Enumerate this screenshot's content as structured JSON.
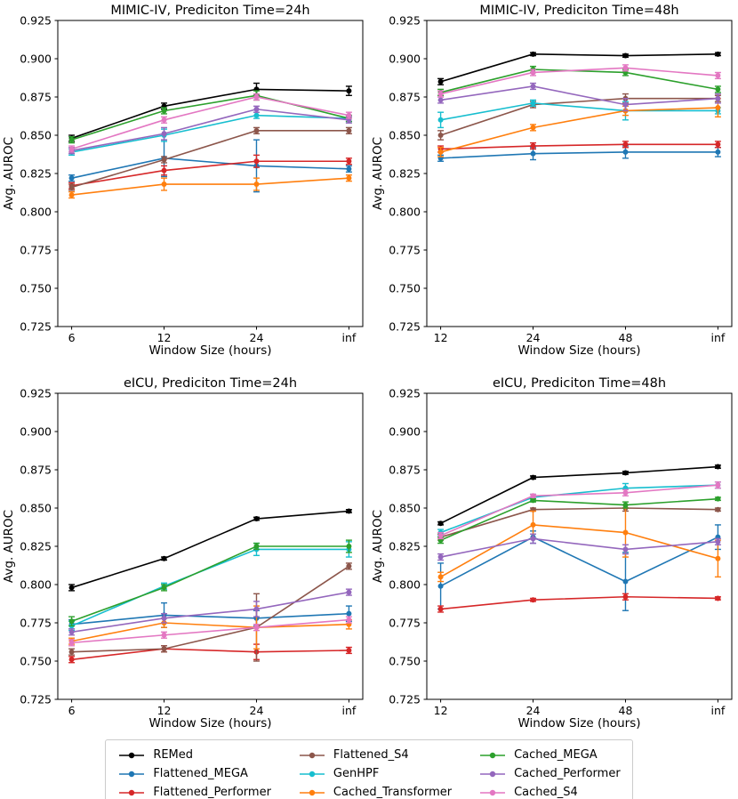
{
  "figure": {
    "background": "#ffffff"
  },
  "legend": {
    "entries": [
      {
        "label": "REMed",
        "color": "#000000"
      },
      {
        "label": "Flattened_MEGA",
        "color": "#1f77b4"
      },
      {
        "label": "Flattened_Performer",
        "color": "#d62728"
      },
      {
        "label": "Flattened_S4",
        "color": "#8c564b"
      },
      {
        "label": "GenHPF",
        "color": "#17becf"
      },
      {
        "label": "Cached_Transformer",
        "color": "#ff7f0e"
      },
      {
        "label": "Cached_MEGA",
        "color": "#2ca02c"
      },
      {
        "label": "Cached_Performer",
        "color": "#9467bd"
      },
      {
        "label": "Cached_S4",
        "color": "#e377c2"
      }
    ]
  },
  "chart_data": [
    {
      "type": "line",
      "title": "MIMIC-IV, Prediciton Time=24h",
      "xlabel": "Window Size (hours)",
      "ylabel": "Avg. AUROC",
      "categories": [
        "6",
        "12",
        "24",
        "inf"
      ],
      "ylim": [
        0.725,
        0.925
      ],
      "yticks": [
        0.725,
        0.75,
        0.775,
        0.8,
        0.825,
        0.85,
        0.875,
        0.9,
        0.925
      ],
      "grid": false,
      "series": [
        {
          "name": "REMed",
          "values": [
            0.848,
            0.869,
            0.88,
            0.879
          ],
          "errors": [
            0.002,
            0.002,
            0.004,
            0.003
          ]
        },
        {
          "name": "Flattened_MEGA",
          "values": [
            0.822,
            0.835,
            0.83,
            0.828
          ],
          "errors": [
            0.002,
            0.012,
            0.017,
            0.002
          ]
        },
        {
          "name": "Flattened_Performer",
          "values": [
            0.817,
            0.827,
            0.833,
            0.833
          ],
          "errors": [
            0.002,
            0.003,
            0.004,
            0.002
          ]
        },
        {
          "name": "Flattened_S4",
          "values": [
            0.816,
            0.834,
            0.853,
            0.853
          ],
          "errors": [
            0.002,
            0.002,
            0.002,
            0.002
          ]
        },
        {
          "name": "GenHPF",
          "values": [
            0.839,
            0.85,
            0.863,
            0.861
          ],
          "errors": [
            0.002,
            0.004,
            0.002,
            0.002
          ]
        },
        {
          "name": "Cached_Transformer",
          "values": [
            0.811,
            0.818,
            0.818,
            0.822
          ],
          "errors": [
            0.002,
            0.004,
            0.004,
            0.002
          ]
        },
        {
          "name": "Cached_MEGA",
          "values": [
            0.847,
            0.866,
            0.876,
            0.861
          ],
          "errors": [
            0.002,
            0.002,
            0.003,
            0.002
          ]
        },
        {
          "name": "Cached_Performer",
          "values": [
            0.84,
            0.851,
            0.867,
            0.86
          ],
          "errors": [
            0.002,
            0.004,
            0.002,
            0.002
          ]
        },
        {
          "name": "Cached_S4",
          "values": [
            0.841,
            0.86,
            0.875,
            0.863
          ],
          "errors": [
            0.002,
            0.002,
            0.002,
            0.002
          ]
        }
      ]
    },
    {
      "type": "line",
      "title": "MIMIC-IV, Prediciton Time=48h",
      "xlabel": "Window Size (hours)",
      "ylabel": "Avg. AUROC",
      "categories": [
        "12",
        "24",
        "48",
        "inf"
      ],
      "ylim": [
        0.725,
        0.925
      ],
      "yticks": [
        0.725,
        0.75,
        0.775,
        0.8,
        0.825,
        0.85,
        0.875,
        0.9,
        0.925
      ],
      "grid": false,
      "series": [
        {
          "name": "REMed",
          "values": [
            0.885,
            0.903,
            0.902,
            0.903
          ],
          "errors": [
            0.002,
            0.001,
            0.001,
            0.001
          ]
        },
        {
          "name": "Flattened_MEGA",
          "values": [
            0.835,
            0.838,
            0.839,
            0.839
          ],
          "errors": [
            0.002,
            0.004,
            0.004,
            0.003
          ]
        },
        {
          "name": "Flattened_Performer",
          "values": [
            0.841,
            0.843,
            0.844,
            0.844
          ],
          "errors": [
            0.002,
            0.002,
            0.002,
            0.002
          ]
        },
        {
          "name": "Flattened_S4",
          "values": [
            0.85,
            0.87,
            0.874,
            0.874
          ],
          "errors": [
            0.003,
            0.002,
            0.003,
            0.002
          ]
        },
        {
          "name": "GenHPF",
          "values": [
            0.86,
            0.871,
            0.866,
            0.866
          ],
          "errors": [
            0.005,
            0.002,
            0.006,
            0.002
          ]
        },
        {
          "name": "Cached_Transformer",
          "values": [
            0.839,
            0.855,
            0.866,
            0.868
          ],
          "errors": [
            0.003,
            0.002,
            0.003,
            0.006
          ]
        },
        {
          "name": "Cached_MEGA",
          "values": [
            0.878,
            0.893,
            0.891,
            0.88
          ],
          "errors": [
            0.002,
            0.002,
            0.002,
            0.002
          ]
        },
        {
          "name": "Cached_Performer",
          "values": [
            0.873,
            0.882,
            0.87,
            0.874
          ],
          "errors": [
            0.002,
            0.002,
            0.004,
            0.003
          ]
        },
        {
          "name": "Cached_S4",
          "values": [
            0.877,
            0.891,
            0.894,
            0.889
          ],
          "errors": [
            0.002,
            0.002,
            0.002,
            0.002
          ]
        }
      ]
    },
    {
      "type": "line",
      "title": "eICU, Prediciton Time=24h",
      "xlabel": "Window Size (hours)",
      "ylabel": "Avg. AUROC",
      "categories": [
        "6",
        "12",
        "24",
        "inf"
      ],
      "ylim": [
        0.725,
        0.925
      ],
      "yticks": [
        0.725,
        0.75,
        0.775,
        0.8,
        0.825,
        0.85,
        0.875,
        0.9,
        0.925
      ],
      "grid": false,
      "series": [
        {
          "name": "REMed",
          "values": [
            0.798,
            0.817,
            0.843,
            0.848
          ],
          "errors": [
            0.002,
            0.001,
            0.001,
            0.001
          ]
        },
        {
          "name": "Flattened_MEGA",
          "values": [
            0.774,
            0.78,
            0.778,
            0.781
          ],
          "errors": [
            0.003,
            0.008,
            0.005,
            0.005
          ]
        },
        {
          "name": "Flattened_Performer",
          "values": [
            0.751,
            0.758,
            0.756,
            0.757
          ],
          "errors": [
            0.002,
            0.002,
            0.005,
            0.002
          ]
        },
        {
          "name": "Flattened_S4",
          "values": [
            0.756,
            0.758,
            0.772,
            0.812
          ],
          "errors": [
            0.002,
            0.002,
            0.022,
            0.002
          ]
        },
        {
          "name": "GenHPF",
          "values": [
            0.773,
            0.799,
            0.823,
            0.823
          ],
          "errors": [
            0.003,
            0.002,
            0.004,
            0.005
          ]
        },
        {
          "name": "Cached_Transformer",
          "values": [
            0.763,
            0.775,
            0.772,
            0.774
          ],
          "errors": [
            0.002,
            0.003,
            0.014,
            0.003
          ]
        },
        {
          "name": "Cached_MEGA",
          "values": [
            0.776,
            0.798,
            0.825,
            0.825
          ],
          "errors": [
            0.003,
            0.002,
            0.002,
            0.004
          ]
        },
        {
          "name": "Cached_Performer",
          "values": [
            0.769,
            0.778,
            0.784,
            0.795
          ],
          "errors": [
            0.002,
            0.003,
            0.005,
            0.002
          ]
        },
        {
          "name": "Cached_S4",
          "values": [
            0.762,
            0.767,
            0.772,
            0.777
          ],
          "errors": [
            0.002,
            0.002,
            0.002,
            0.002
          ]
        }
      ]
    },
    {
      "type": "line",
      "title": "eICU, Prediciton Time=48h",
      "xlabel": "Window Size (hours)",
      "ylabel": "Avg. AUROC",
      "categories": [
        "12",
        "24",
        "48",
        "inf"
      ],
      "ylim": [
        0.725,
        0.925
      ],
      "yticks": [
        0.725,
        0.75,
        0.775,
        0.8,
        0.825,
        0.85,
        0.875,
        0.9,
        0.925
      ],
      "grid": false,
      "series": [
        {
          "name": "REMed",
          "values": [
            0.84,
            0.87,
            0.873,
            0.877
          ],
          "errors": [
            0.001,
            0.001,
            0.001,
            0.001
          ]
        },
        {
          "name": "Flattened_MEGA",
          "values": [
            0.799,
            0.831,
            0.802,
            0.831
          ],
          "errors": [
            0.015,
            0.004,
            0.019,
            0.008
          ]
        },
        {
          "name": "Flattened_Performer",
          "values": [
            0.784,
            0.79,
            0.792,
            0.791
          ],
          "errors": [
            0.002,
            0.001,
            0.002,
            0.001
          ]
        },
        {
          "name": "Flattened_S4",
          "values": [
            0.831,
            0.849,
            0.85,
            0.849
          ],
          "errors": [
            0.002,
            0.001,
            0.002,
            0.001
          ]
        },
        {
          "name": "GenHPF",
          "values": [
            0.834,
            0.857,
            0.863,
            0.865
          ],
          "errors": [
            0.002,
            0.002,
            0.003,
            0.002
          ]
        },
        {
          "name": "Cached_Transformer",
          "values": [
            0.805,
            0.839,
            0.834,
            0.817
          ],
          "errors": [
            0.003,
            0.009,
            0.016,
            0.012
          ]
        },
        {
          "name": "Cached_MEGA",
          "values": [
            0.829,
            0.855,
            0.852,
            0.856
          ],
          "errors": [
            0.002,
            0.001,
            0.002,
            0.001
          ]
        },
        {
          "name": "Cached_Performer",
          "values": [
            0.818,
            0.83,
            0.823,
            0.828
          ],
          "errors": [
            0.002,
            0.003,
            0.003,
            0.002
          ]
        },
        {
          "name": "Cached_S4",
          "values": [
            0.832,
            0.858,
            0.86,
            0.865
          ],
          "errors": [
            0.002,
            0.001,
            0.002,
            0.002
          ]
        }
      ]
    }
  ]
}
